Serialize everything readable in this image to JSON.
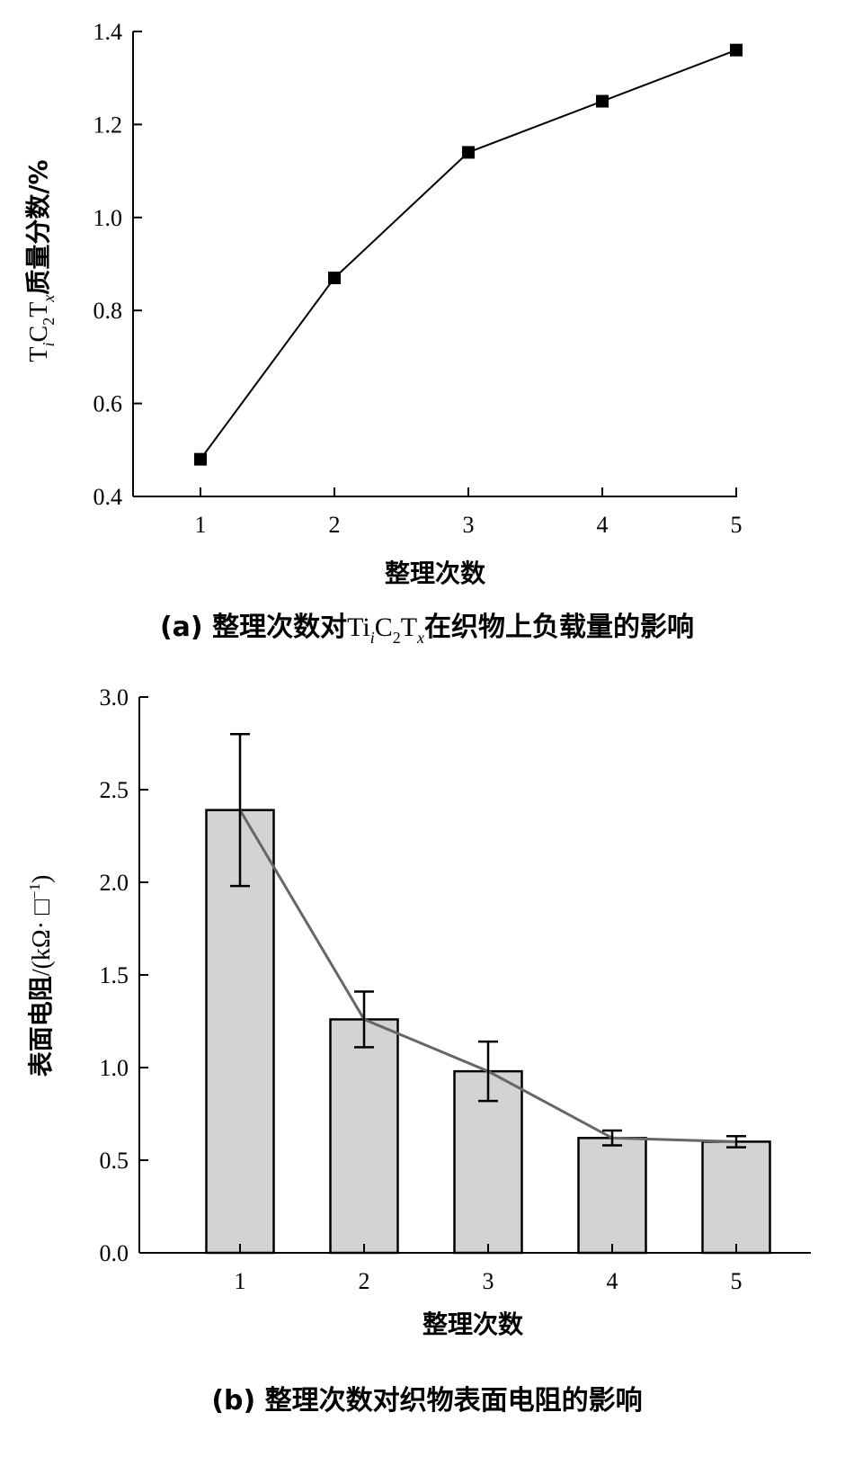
{
  "chart_data": [
    {
      "type": "line",
      "x": [
        1,
        2,
        3,
        4,
        5
      ],
      "values": [
        0.48,
        0.87,
        1.14,
        1.25,
        1.36
      ],
      "xlabel": "整理次数",
      "ylabel": "TiC2Tx质量分数/%",
      "ylim": [
        0.4,
        1.4
      ],
      "yticks": [
        "0.4",
        "0.6",
        "0.8",
        "1.0",
        "1.2",
        "1.4"
      ],
      "xticks": [
        "1",
        "2",
        "3",
        "4",
        "5"
      ],
      "caption": "(a) 整理次数对TiC2Tx在织物上负载量的影响",
      "marker": "square",
      "grid": false
    },
    {
      "type": "bar",
      "categories": [
        "1",
        "2",
        "3",
        "4",
        "5"
      ],
      "values": [
        2.39,
        1.26,
        0.98,
        0.62,
        0.6
      ],
      "error": [
        0.41,
        0.15,
        0.16,
        0.04,
        0.03
      ],
      "overlay_line": true,
      "xlabel": "整理次数",
      "ylabel": "表面电阻/(kΩ· □⁻¹)",
      "ylim": [
        0.0,
        3.0
      ],
      "yticks": [
        "0.0",
        "0.5",
        "1.0",
        "1.5",
        "2.0",
        "2.5",
        "3.0"
      ],
      "caption": "(b) 整理次数对织物表面电阻的影响",
      "colors": {
        "bar_fill": "#d3d3d3",
        "bar_stroke": "#000000",
        "line": "#666666"
      },
      "grid": false
    }
  ],
  "text": {
    "a_ylabel_T1": "T",
    "a_ylabel_i": "i",
    "a_ylabel_C": "C",
    "a_ylabel_2": "2",
    "a_ylabel_T2": "T",
    "a_ylabel_x": "x",
    "a_ylabel_rest": "质量分数/%",
    "a_xlabel": "整理次数",
    "a_caption_pre": "(a) 整理次数对",
    "a_caption_Ti": "Ti",
    "a_caption_i": "i",
    "a_caption_C": "C",
    "a_caption_2": "2",
    "a_caption_T": "T",
    "a_caption_x": "x",
    "a_caption_post": "在织物上负载量的影响",
    "b_ylabel_cn": "表面电阻",
    "b_ylabel_unit": "/(kΩ· □",
    "b_ylabel_sup": "−1",
    "b_ylabel_close": ")",
    "b_xlabel": "整理次数",
    "b_caption": "(b) 整理次数对织物表面电阻的影响"
  }
}
